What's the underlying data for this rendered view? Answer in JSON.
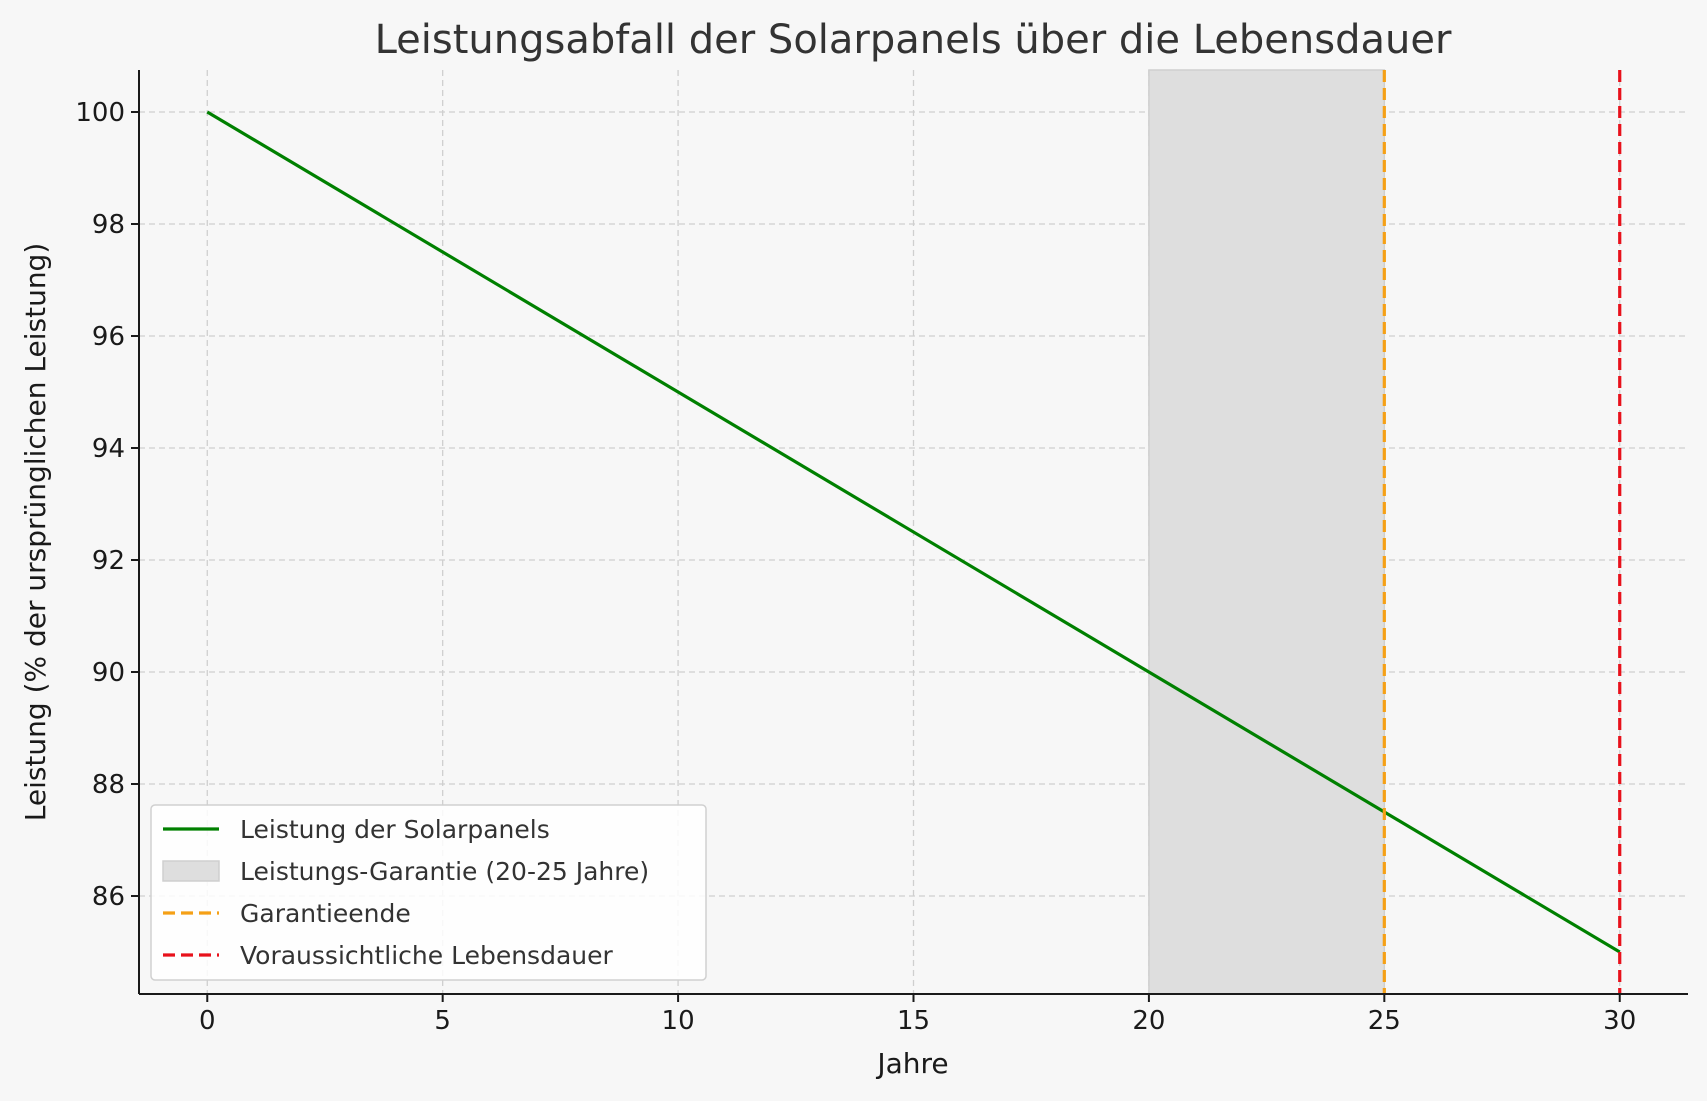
{
  "chart_data": {
    "type": "line",
    "title": "Leistungsabfall der Solarpanels über die Lebensdauer",
    "xlabel": "Jahre",
    "ylabel": "Leistung (% der ursprünglichen Leistung)",
    "xlim": [
      -1.45,
      31.45
    ],
    "ylim": [
      84.25,
      100.75
    ],
    "xticks": [
      0,
      5,
      10,
      15,
      20,
      25,
      30
    ],
    "yticks": [
      86,
      88,
      90,
      92,
      94,
      96,
      98,
      100
    ],
    "grid": true,
    "legend_position": "lower-left",
    "series": [
      {
        "name": "Leistung der Solarpanels",
        "x": [
          0,
          30
        ],
        "y": [
          100,
          85
        ],
        "color": "#008000",
        "style": "solid"
      }
    ],
    "shaded_region": {
      "name": "Leistungs-Garantie (20-25 Jahre)",
      "x_start": 20,
      "x_end": 25,
      "color": "#dedede"
    },
    "vlines": [
      {
        "name": "Garantieende",
        "x": 25,
        "color": "#f5a016",
        "style": "dashed"
      },
      {
        "name": "Voraussichtliche Lebensdauer",
        "x": 30,
        "color": "#e8111b",
        "style": "dashed"
      }
    ],
    "legend": [
      {
        "label": "Leistung der Solarpanels",
        "kind": "line",
        "color": "#008000"
      },
      {
        "label": "Leistungs-Garantie (20-25 Jahre)",
        "kind": "patch",
        "color": "#dedede"
      },
      {
        "label": "Garantieende",
        "kind": "dashed",
        "color": "#f5a016"
      },
      {
        "label": "Voraussichtliche Lebensdauer",
        "kind": "dashed",
        "color": "#e8111b"
      }
    ]
  }
}
